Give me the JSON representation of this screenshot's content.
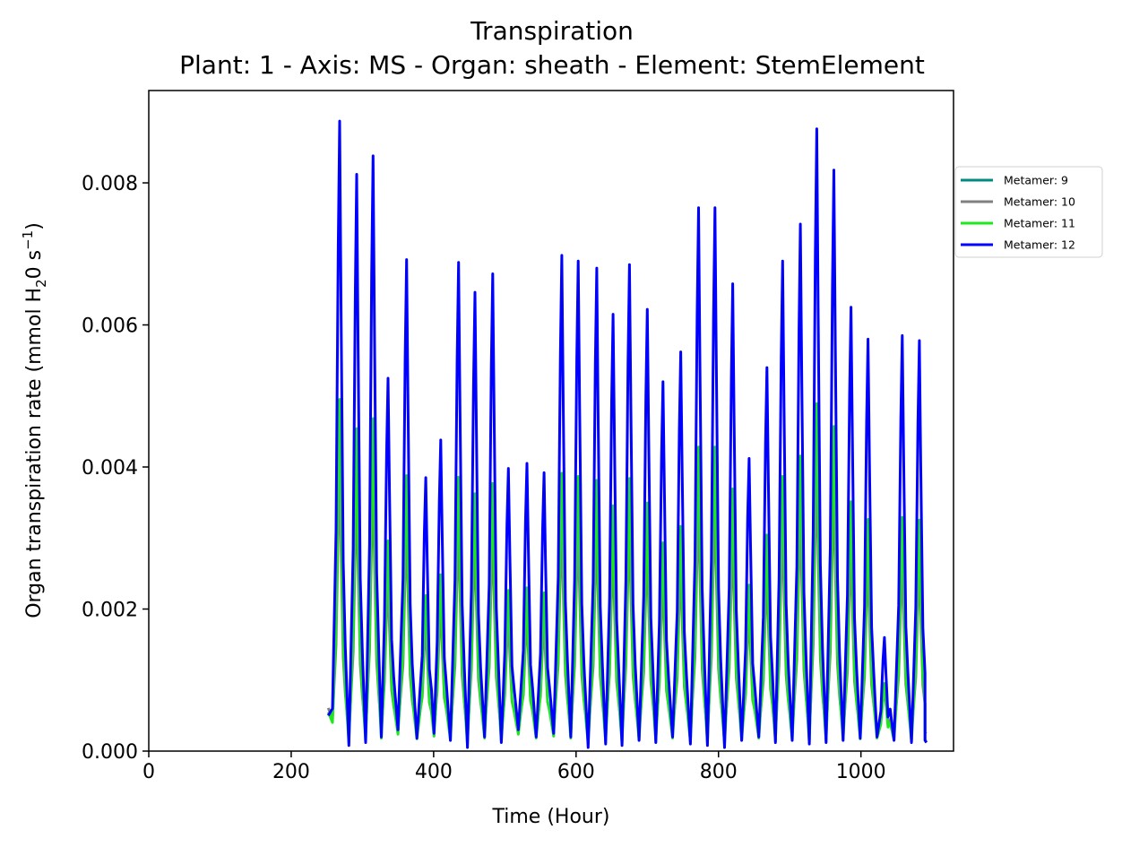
{
  "chart_data": {
    "type": "line",
    "title": "Transpiration",
    "subtitle": "Plant: 1 - Axis: MS - Organ: sheath - Element: StemElement",
    "xlabel": "Time (Hour)",
    "ylabel_parts": [
      "Organ transpiration rate (mmol H",
      "2",
      "0 s",
      "−1",
      ")"
    ],
    "xlim": [
      0,
      1130
    ],
    "ylim": [
      0,
      0.0093
    ],
    "xticks": [
      0,
      200,
      400,
      600,
      800,
      1000
    ],
    "xtick_labels": [
      "0",
      "200",
      "400",
      "600",
      "800",
      "1000"
    ],
    "yticks": [
      0,
      0.002,
      0.004,
      0.006,
      0.008
    ],
    "ytick_labels": [
      "0.000",
      "0.002",
      "0.004",
      "0.006",
      "0.008"
    ],
    "grid": false,
    "legend_position": "outside-right-top",
    "x_start": 252,
    "x_end": 1092,
    "peak_x": [
      268,
      292,
      315,
      336,
      362,
      389,
      410,
      435,
      458,
      483,
      505,
      531,
      555,
      580,
      603,
      629,
      652,
      675,
      700,
      722,
      747,
      772,
      795,
      820,
      843,
      868,
      890,
      915,
      938,
      962,
      986,
      1010,
      1033,
      1058,
      1082
    ],
    "series": [
      {
        "name": "Metamer: 9",
        "color": "#008b80",
        "peak_scale": 0.0,
        "base_offset": 0.0
      },
      {
        "name": "Metamer: 10",
        "color": "#808080",
        "peak_scale": 0.42,
        "base_offset": 0.00025
      },
      {
        "name": "Metamer: 11",
        "color": "#1de81d",
        "peak_scale": 0.55,
        "base_offset": 0.0001
      },
      {
        "name": "Metamer: 12",
        "color": "#0000ff",
        "peak_scale": 1.0,
        "base_offset": 0.0
      }
    ],
    "peaks_metamer12": [
      0.00887,
      0.00812,
      0.00838,
      0.00525,
      0.00692,
      0.00385,
      0.00438,
      0.00688,
      0.00646,
      0.00672,
      0.00398,
      0.00405,
      0.00392,
      0.00698,
      0.0069,
      0.0068,
      0.00615,
      0.00685,
      0.00622,
      0.0052,
      0.00562,
      0.00765,
      0.00765,
      0.00658,
      0.00412,
      0.0054,
      0.0069,
      0.00742,
      0.00876,
      0.00818,
      0.00625,
      0.0058,
      0.0016,
      0.00585,
      0.00578
    ],
    "troughs_metamer12": [
      0.0005,
      8e-05,
      0.00012,
      0.0002,
      0.0003,
      0.00018,
      0.00025,
      0.00015,
      5e-05,
      0.0002,
      0.00012,
      0.0003,
      0.0002,
      0.00025,
      0.0002,
      5e-05,
      0.0001,
      8e-05,
      0.00015,
      0.00012,
      0.0002,
      0.0001,
      8e-05,
      5e-05,
      0.00015,
      0.0002,
      0.00012,
      0.00015,
      0.0001,
      0.00012,
      0.00015,
      0.00018,
      0.0002,
      0.00015,
      0.00012,
      0.00015
    ]
  }
}
